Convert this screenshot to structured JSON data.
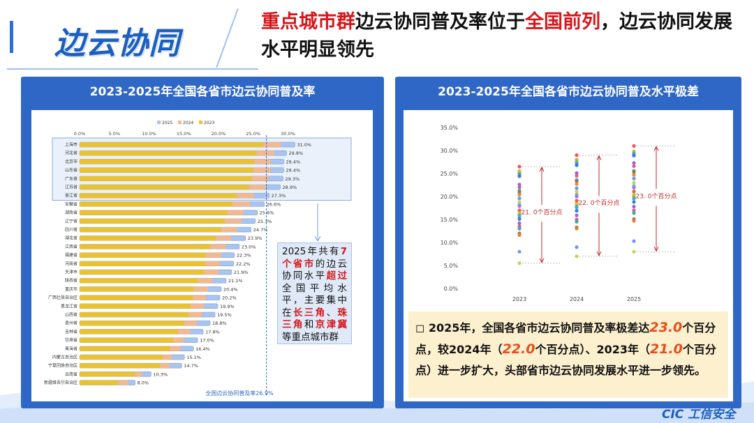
{
  "header": {
    "badge": "边云协同",
    "headline_parts": [
      {
        "t": "重点城市群",
        "red": true
      },
      {
        "t": "边云协同普及率位于",
        "red": false
      },
      {
        "t": "全国前列",
        "red": true
      },
      {
        "t": "，边云协同发展水平明显领先",
        "red": false
      }
    ]
  },
  "left_panel": {
    "title": "2023-2025年全国各省市边云协同普及率"
  },
  "right_panel": {
    "title": "2023-2025年全国各省市边云协同普及水平极差"
  },
  "callout": {
    "parts": [
      {
        "t": "2025年共有",
        "b": false
      },
      {
        "t": "7个省市",
        "b": true
      },
      {
        "t": "的边云协同水平",
        "b": false
      },
      {
        "t": "超过",
        "b": true
      },
      {
        "t": "全国平均水平，主要集中在",
        "b": false
      },
      {
        "t": "长三角",
        "b": true
      },
      {
        "t": "、",
        "b": false
      },
      {
        "t": "珠三角",
        "b": true
      },
      {
        "t": "和",
        "b": false
      },
      {
        "t": "京津冀",
        "b": true
      },
      {
        "t": "等重点城市群",
        "b": false
      }
    ]
  },
  "summary": {
    "parts": [
      {
        "t": "◻ 2025年，全国各省市边云协同普及率极差达",
        "n": false
      },
      {
        "t": "23.0",
        "n": true
      },
      {
        "t": "个百分点，较2024年（",
        "n": false
      },
      {
        "t": "22.0",
        "n": true
      },
      {
        "t": "个百分点）、2023年（",
        "n": false
      },
      {
        "t": "21.0",
        "n": true
      },
      {
        "t": "个百分点）进一步扩大，头部省市边云协同发展水平进一步领先。",
        "n": false
      }
    ]
  },
  "logo": "CIC 工信安全",
  "colors": {
    "y2025": "#a9c4ee",
    "y2024": "#f2b98e",
    "y2023": "#e9c233",
    "accent_red": "#d6161b",
    "panel_blue": "#2f67c6"
  },
  "chart_data": [
    {
      "type": "bar",
      "orientation": "horizontal",
      "legend": [
        "2025",
        "2024",
        "2023"
      ],
      "legend_position": "top",
      "xlim": [
        0,
        30
      ],
      "xticks": [
        "0.0%",
        "5.0%",
        "10.0%",
        "15.0%",
        "20.0%",
        "25.0%",
        "30.0%"
      ],
      "reference_line": {
        "label": "全国边云协同普及率26.9%",
        "value": 26.9
      },
      "categories": [
        "上海市",
        "河北省",
        "北京市",
        "山东省",
        "广东省",
        "江苏省",
        "浙江省",
        "安徽省",
        "湖南省",
        "辽宁省",
        "四川省",
        "湖北省",
        "江西省",
        "福建省",
        "河南省",
        "天津市",
        "陕西省",
        "重庆市",
        "广西壮族自治区",
        "黑龙江省",
        "山西省",
        "贵州省",
        "吉林省",
        "甘肃省",
        "青海省",
        "内蒙古自治区",
        "宁夏回族自治区",
        "云南省",
        "新疆维吾尔自治区"
      ],
      "series": [
        {
          "name": "2025",
          "values": [
            31.0,
            29.8,
            29.4,
            29.4,
            29.3,
            28.9,
            27.3,
            26.6,
            25.6,
            25.3,
            24.7,
            23.9,
            23.0,
            22.3,
            22.2,
            21.9,
            21.1,
            20.4,
            20.2,
            19.9,
            19.5,
            18.8,
            17.8,
            17.0,
            16.4,
            15.1,
            14.7,
            10.3,
            8.0
          ]
        },
        {
          "name": "2024",
          "values": [
            29.0,
            28.0,
            27.5,
            27.5,
            27.2,
            26.8,
            25.1,
            24.5,
            23.6,
            23.3,
            22.7,
            21.8,
            21.1,
            20.4,
            20.2,
            20.0,
            19.1,
            18.5,
            18.2,
            17.9,
            17.6,
            16.9,
            15.9,
            15.0,
            14.5,
            13.3,
            13.0,
            9.0,
            7.0
          ]
        },
        {
          "name": "2023",
          "values": [
            26.5,
            25.5,
            25.2,
            25.0,
            24.8,
            24.4,
            22.6,
            22.0,
            21.3,
            20.9,
            20.4,
            19.6,
            18.8,
            18.2,
            18.1,
            17.9,
            17.0,
            16.4,
            16.3,
            16.0,
            15.7,
            15.1,
            14.2,
            13.5,
            13.0,
            12.0,
            11.6,
            8.0,
            5.5
          ]
        }
      ],
      "value_labels": [
        "31.0%",
        "29.8%",
        "29.4%",
        "29.4%",
        "29.3%",
        "28.9%",
        "27.3%",
        "26.6%",
        "25.6%",
        "25.3%",
        "24.7%",
        "23.9%",
        "23.0%",
        "22.3%",
        "22.2%",
        "21.9%",
        "21.1%",
        "20.4%",
        "20.2%",
        "19.9%",
        "19.5%",
        "18.8%",
        "17.8%",
        "17.0%",
        "16.4%",
        "15.1%",
        "14.7%",
        "10.3%",
        "8.0%"
      ],
      "highlighted_top": 7
    },
    {
      "type": "scatter",
      "categories": [
        "2023",
        "2024",
        "2025"
      ],
      "ylim": [
        0,
        35
      ],
      "yticks": [
        "0.0%",
        "5.0%",
        "10.0%",
        "15.0%",
        "20.0%",
        "25.0%",
        "30.0%",
        "35.0%"
      ],
      "grid": false,
      "series": [
        {
          "x": "2023",
          "values": [
            26.5,
            25.5,
            25.2,
            25.0,
            24.8,
            24.4,
            22.6,
            22.0,
            21.3,
            20.9,
            20.4,
            19.6,
            18.8,
            18.2,
            18.1,
            17.9,
            17.0,
            16.4,
            16.3,
            16.0,
            15.7,
            15.1,
            14.2,
            13.5,
            13.0,
            12.0,
            11.6,
            8.0,
            5.5
          ]
        },
        {
          "x": "2024",
          "values": [
            29.0,
            28.0,
            27.5,
            27.5,
            27.2,
            26.8,
            25.1,
            24.5,
            23.6,
            23.3,
            22.7,
            21.8,
            21.1,
            20.4,
            20.2,
            20.0,
            19.1,
            18.5,
            18.2,
            17.9,
            17.6,
            16.9,
            15.9,
            15.0,
            14.5,
            13.3,
            13.0,
            9.0,
            7.0
          ]
        },
        {
          "x": "2025",
          "values": [
            31.0,
            29.8,
            29.4,
            29.4,
            29.3,
            28.9,
            27.3,
            26.6,
            25.6,
            25.3,
            24.7,
            23.9,
            23.0,
            22.3,
            22.2,
            21.9,
            21.1,
            20.4,
            20.2,
            19.9,
            19.5,
            18.8,
            17.8,
            17.0,
            16.4,
            15.1,
            14.7,
            10.3,
            8.0
          ]
        }
      ],
      "ranges": [
        {
          "x": "2023",
          "min": 5.5,
          "max": 26.5,
          "label": "21. 0个百分点"
        },
        {
          "x": "2024",
          "min": 7.0,
          "max": 29.0,
          "label": "22. 0个百分点"
        },
        {
          "x": "2025",
          "min": 8.0,
          "max": 31.0,
          "label": "23. 0个百分点"
        }
      ]
    }
  ]
}
